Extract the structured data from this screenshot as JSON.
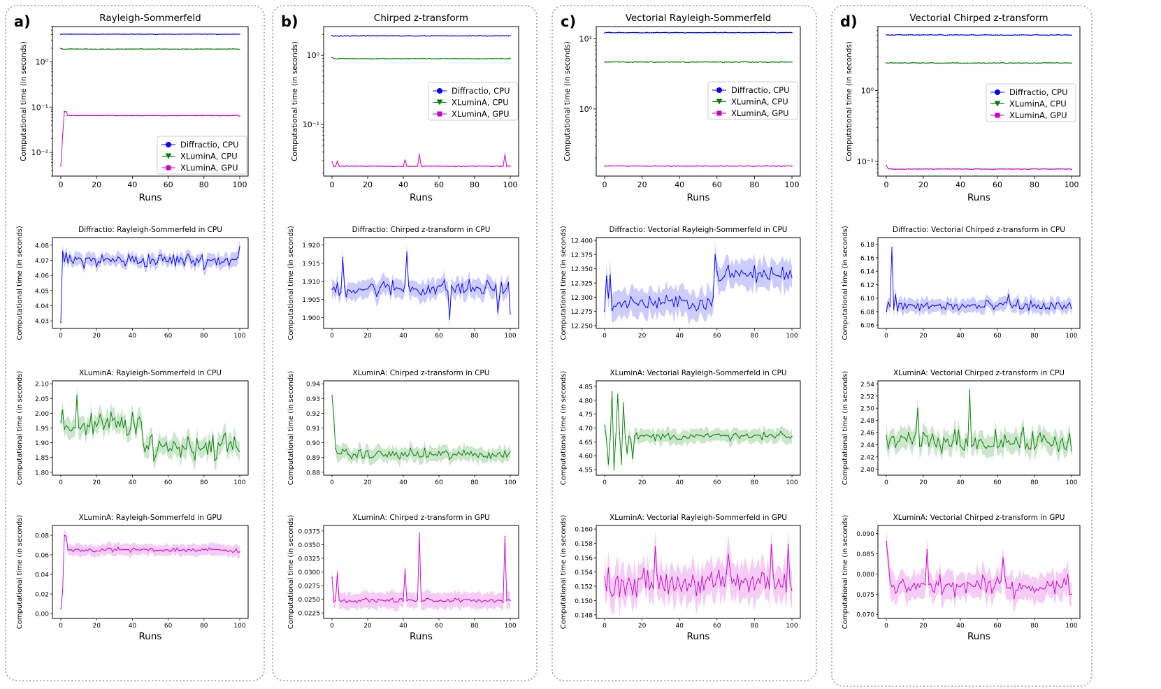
{
  "figure": {
    "panels": [
      {
        "letter": "a)",
        "title": "Rayleigh-Sommerfeld",
        "legend": [
          "Diffractio, CPU",
          "XLuminA, CPU",
          "XLuminA, GPU"
        ],
        "xlabel": "Runs",
        "ylabel": "Computational time (in seconds)",
        "yticks_log": [
          "10⁻²",
          "10⁻¹",
          "10⁰"
        ],
        "subplots": [
          {
            "title": "Diffractio: Rayleigh-Sommerfeld in CPU",
            "yticks": [
              "4.03",
              "4.04",
              "4.05",
              "4.06",
              "4.07",
              "4.08"
            ]
          },
          {
            "title": "XLuminA: Rayleigh-Sommerfeld in CPU",
            "yticks": [
              "1.80",
              "1.85",
              "1.90",
              "1.95",
              "2.00",
              "2.05",
              "2.10"
            ]
          },
          {
            "title": "XLuminA: Rayleigh-Sommerfeld in GPU",
            "yticks": [
              "0.00",
              "0.02",
              "0.04",
              "0.06",
              "0.08"
            ]
          }
        ]
      },
      {
        "letter": "b)",
        "title": "Chirped z-transform",
        "legend": [
          "Diffractio, CPU",
          "XLuminA, CPU",
          "XLuminA, GPU"
        ],
        "xlabel": "Runs",
        "ylabel": "Computational time (in seconds)",
        "yticks_log": [
          "10⁻¹",
          "10⁰"
        ],
        "subplots": [
          {
            "title": "Diffractio: Chirped z-transform in CPU",
            "yticks": [
              "1.900",
              "1.905",
              "1.910",
              "1.915",
              "1.920"
            ]
          },
          {
            "title": "XLuminA: Chirped z-transform in CPU",
            "yticks": [
              "0.88",
              "0.89",
              "0.90",
              "0.91",
              "0.92",
              "0.93",
              "0.94"
            ]
          },
          {
            "title": "XLuminA: Chirped z-transform in GPU",
            "yticks": [
              "0.0225",
              "0.0250",
              "0.0275",
              "0.0300",
              "0.0325",
              "0.0350",
              "0.0375"
            ]
          }
        ]
      },
      {
        "letter": "c)",
        "title": "Vectorial Rayleigh-Sommerfeld",
        "legend": [
          "Diffractio, CPU",
          "XLuminA, CPU",
          "XLuminA, GPU"
        ],
        "xlabel": "Runs",
        "ylabel": "Computational time (in seconds)",
        "yticks_log": [
          "10⁰",
          "10¹"
        ],
        "subplots": [
          {
            "title": "Diffractio: Vectorial Rayleigh-Sommerfeld in CPU",
            "yticks": [
              "12.250",
              "12.275",
              "12.300",
              "12.325",
              "12.350",
              "12.375",
              "12.400"
            ]
          },
          {
            "title": "XLuminA: Vectorial Rayleigh-Sommerfeld in CPU",
            "yticks": [
              "4.55",
              "4.60",
              "4.65",
              "4.70",
              "4.75",
              "4.80",
              "4.85"
            ]
          },
          {
            "title": "XLuminA: Vectorial Rayleigh-Sommerfeld in GPU",
            "yticks": [
              "0.148",
              "0.150",
              "0.152",
              "0.154",
              "0.156",
              "0.158",
              "0.160"
            ]
          }
        ]
      },
      {
        "letter": "d)",
        "title": "Vectorial Chirped z-transform",
        "legend": [
          "Diffractio, CPU",
          "XLuminA, CPU",
          "XLuminA, GPU"
        ],
        "xlabel": "Runs",
        "ylabel": "Computational time (in seconds)",
        "yticks_log": [
          "10⁻¹",
          "10⁰"
        ],
        "subplots": [
          {
            "title": "Diffractio: Vectorial Chirped z-transform in CPU",
            "yticks": [
              "6.06",
              "6.08",
              "6.10",
              "6.12",
              "6.14",
              "6.16",
              "6.18"
            ]
          },
          {
            "title": "XLuminA: Vectorial Chirped z-transform in CPU",
            "yticks": [
              "2.40",
              "2.42",
              "2.44",
              "2.46",
              "2.48",
              "2.50",
              "2.52",
              "2.54"
            ]
          },
          {
            "title": "XLuminA: Vectorial Chirped z-transform in GPU",
            "yticks": [
              "0.070",
              "0.075",
              "0.080",
              "0.085",
              "0.090"
            ]
          }
        ]
      }
    ],
    "colors": {
      "diffractio_cpu": "#0000ff",
      "xlumina_cpu": "#008000",
      "xlumina_gpu": "#cc00cc",
      "panel_border": "#999999"
    }
  },
  "chart_data": [
    {
      "type": "line",
      "panel": "a",
      "title": "Rayleigh-Sommerfeld",
      "xlabel": "Runs",
      "ylabel": "Computational time (in seconds)",
      "yscale": "log",
      "xlim": [
        0,
        100
      ],
      "ylim": [
        0.003,
        6
      ],
      "xticks": [
        0,
        20,
        40,
        60,
        80,
        100
      ],
      "legend": "center-right",
      "series": [
        {
          "name": "Diffractio, CPU",
          "marker": "circle",
          "key": [
            [
              0,
              4.03
            ],
            [
              1,
              4.076
            ],
            [
              100,
              4.079
            ]
          ],
          "level": 4.07
        },
        {
          "name": "XLuminA, CPU",
          "marker": "triangle-down",
          "key": [
            [
              0,
              1.97
            ],
            [
              100,
              1.87
            ]
          ],
          "level": 1.91
        },
        {
          "name": "XLuminA, GPU",
          "marker": "square",
          "key": [
            [
              0,
              0.005
            ],
            [
              1,
              0.023
            ],
            [
              2,
              0.08
            ],
            [
              3,
              0.079
            ],
            [
              4,
              0.065
            ],
            [
              100,
              0.063
            ]
          ],
          "level": 0.065
        }
      ]
    },
    {
      "type": "line",
      "panel": "a",
      "title": "Diffractio: Rayleigh-Sommerfeld in CPU",
      "xlim": [
        0,
        100
      ],
      "ylim": [
        4.025,
        4.085
      ],
      "errorband": true,
      "series": [
        {
          "name": "Diffractio, CPU",
          "key": [
            [
              0,
              4.029
            ],
            [
              1,
              4.076
            ],
            [
              100,
              4.079
            ]
          ],
          "level": 4.07,
          "noise": 0.004,
          "band": 0.005
        }
      ]
    },
    {
      "type": "line",
      "panel": "a",
      "title": "XLuminA: Rayleigh-Sommerfeld in CPU",
      "xlim": [
        0,
        100
      ],
      "ylim": [
        1.79,
        2.11
      ],
      "errorband": true,
      "series": [
        {
          "name": "XLuminA, CPU",
          "key": [
            [
              0,
              1.97
            ],
            [
              1,
              2.01
            ],
            [
              9,
              2.06
            ],
            [
              45,
              1.97
            ],
            [
              47,
              1.87
            ],
            [
              100,
              1.87
            ]
          ],
          "level_segments": [
            [
              0,
              45,
              1.96
            ],
            [
              46,
              100,
              1.89
            ]
          ],
          "noise": 0.04,
          "band": 0.04
        }
      ]
    },
    {
      "type": "line",
      "panel": "a",
      "title": "XLuminA: Rayleigh-Sommerfeld in GPU",
      "xlim": [
        0,
        100
      ],
      "ylim": [
        -0.005,
        0.09
      ],
      "errorband": true,
      "series": [
        {
          "name": "XLuminA, GPU",
          "key": [
            [
              0,
              0.005
            ],
            [
              1,
              0.023
            ],
            [
              2,
              0.08
            ],
            [
              3,
              0.079
            ],
            [
              4,
              0.065
            ],
            [
              100,
              0.063
            ]
          ],
          "level": 0.065,
          "noise": 0.002,
          "band": 0.007
        }
      ]
    },
    {
      "type": "line",
      "panel": "b",
      "title": "Chirped z-transform",
      "xlabel": "Runs",
      "ylabel": "Computational time (in seconds)",
      "yscale": "log",
      "xlim": [
        0,
        100
      ],
      "ylim": [
        0.018,
        2.6
      ],
      "xticks": [
        0,
        20,
        40,
        60,
        80,
        100
      ],
      "legend": "center-right",
      "series": [
        {
          "name": "Diffractio, CPU",
          "marker": "circle",
          "level": 1.908
        },
        {
          "name": "XLuminA, CPU",
          "marker": "triangle-down",
          "key": [
            [
              0,
              0.93
            ],
            [
              1,
              0.9
            ]
          ],
          "level": 0.892
        },
        {
          "name": "XLuminA, GPU",
          "marker": "square",
          "key": [
            [
              0,
              0.029
            ],
            [
              3,
              0.0295
            ],
            [
              6,
              0.025
            ],
            [
              41,
              0.0305
            ],
            [
              49,
              0.037
            ],
            [
              97,
              0.0365
            ],
            [
              100,
              0.025
            ]
          ],
          "level": 0.025
        }
      ]
    },
    {
      "type": "line",
      "panel": "b",
      "title": "Diffractio: Chirped z-transform in CPU",
      "xlim": [
        0,
        100
      ],
      "ylim": [
        1.897,
        1.922
      ],
      "errorband": true,
      "series": [
        {
          "name": "Diffractio, CPU",
          "key": [
            [
              6,
              1.9165
            ],
            [
              42,
              1.918
            ],
            [
              66,
              1.8995
            ],
            [
              93,
              1.9015
            ],
            [
              100,
              1.901
            ]
          ],
          "level": 1.908,
          "noise": 0.002,
          "band": 0.003
        }
      ]
    },
    {
      "type": "line",
      "panel": "b",
      "title": "XLuminA: Chirped z-transform in CPU",
      "xlim": [
        0,
        100
      ],
      "ylim": [
        0.878,
        0.942
      ],
      "errorband": true,
      "series": [
        {
          "name": "XLuminA, CPU",
          "key": [
            [
              0,
              0.932
            ],
            [
              1,
              0.917
            ],
            [
              2,
              0.896
            ],
            [
              100,
              0.894
            ]
          ],
          "level": 0.892,
          "noise": 0.003,
          "band": 0.006
        }
      ]
    },
    {
      "type": "line",
      "panel": "b",
      "title": "XLuminA: Chirped z-transform in GPU",
      "xlim": [
        0,
        100
      ],
      "ylim": [
        0.0215,
        0.0385
      ],
      "errorband": true,
      "series": [
        {
          "name": "XLuminA, GPU",
          "key": [
            [
              0,
              0.029
            ],
            [
              3,
              0.0298
            ],
            [
              6,
              0.0248
            ],
            [
              41,
              0.0305
            ],
            [
              49,
              0.037
            ],
            [
              97,
              0.0365
            ],
            [
              100,
              0.0248
            ]
          ],
          "level": 0.0248,
          "noise": 0.0003,
          "band": 0.0018
        }
      ]
    },
    {
      "type": "line",
      "panel": "c",
      "title": "Vectorial Rayleigh-Sommerfeld",
      "xlabel": "Runs",
      "ylabel": "Computational time (in seconds)",
      "yscale": "log",
      "xlim": [
        0,
        100
      ],
      "ylim": [
        0.11,
        15
      ],
      "xticks": [
        0,
        20,
        40,
        60,
        80,
        100
      ],
      "legend": "top-right",
      "series": [
        {
          "name": "Diffractio, CPU",
          "marker": "circle",
          "level": 12.3
        },
        {
          "name": "XLuminA, CPU",
          "marker": "triangle-down",
          "level": 4.67
        },
        {
          "name": "XLuminA, GPU",
          "marker": "square",
          "level": 0.153
        }
      ]
    },
    {
      "type": "line",
      "panel": "c",
      "title": "Diffractio: Vectorial Rayleigh-Sommerfeld in CPU",
      "xlim": [
        0,
        100
      ],
      "ylim": [
        12.245,
        12.405
      ],
      "errorband": true,
      "series": [
        {
          "name": "Diffractio, CPU",
          "key": [
            [
              0,
              12.275
            ],
            [
              1,
              12.337
            ],
            [
              3,
              12.339
            ],
            [
              58,
              12.3
            ],
            [
              59,
              12.375
            ],
            [
              100,
              12.335
            ]
          ],
          "level_segments": [
            [
              0,
              58,
              12.29
            ],
            [
              59,
              100,
              12.34
            ]
          ],
          "noise": 0.012,
          "band": 0.03
        }
      ]
    },
    {
      "type": "line",
      "panel": "c",
      "title": "XLuminA: Vectorial Rayleigh-Sommerfeld in CPU",
      "xlim": [
        0,
        100
      ],
      "ylim": [
        4.53,
        4.87
      ],
      "errorband": true,
      "series": [
        {
          "name": "XLuminA, CPU",
          "key": [
            [
              0,
              4.71
            ],
            [
              1,
              4.66
            ],
            [
              2,
              4.57
            ],
            [
              4,
              4.83
            ],
            [
              5,
              4.55
            ],
            [
              7,
              4.82
            ],
            [
              9,
              4.57
            ],
            [
              10,
              4.79
            ],
            [
              12,
              4.61
            ],
            [
              15,
              4.59
            ],
            [
              100,
              4.67
            ]
          ],
          "level": 4.67,
          "noise": 0.012,
          "band": 0.03
        }
      ]
    },
    {
      "type": "line",
      "panel": "c",
      "title": "XLuminA: Vectorial Rayleigh-Sommerfeld in GPU",
      "xlim": [
        0,
        100
      ],
      "ylim": [
        0.1475,
        0.1605
      ],
      "errorband": true,
      "series": [
        {
          "name": "XLuminA, GPU",
          "key": [
            [
              27,
              0.1575
            ],
            [
              66,
              0.1565
            ],
            [
              89,
              0.1578
            ],
            [
              98,
              0.1578
            ]
          ],
          "level": 0.1525,
          "noise": 0.0015,
          "band": 0.003
        }
      ]
    },
    {
      "type": "line",
      "panel": "d",
      "title": "Vectorial Chirped z-transform",
      "xlabel": "Runs",
      "ylabel": "Computational time (in seconds)",
      "yscale": "log",
      "xlim": [
        0,
        100
      ],
      "ylim": [
        0.062,
        8
      ],
      "xticks": [
        0,
        20,
        40,
        60,
        80,
        100
      ],
      "legend": "center-right",
      "series": [
        {
          "name": "Diffractio, CPU",
          "marker": "circle",
          "level": 6.09
        },
        {
          "name": "XLuminA, CPU",
          "marker": "triangle-down",
          "level": 2.45
        },
        {
          "name": "XLuminA, GPU",
          "marker": "square",
          "key": [
            [
              0,
              0.088
            ],
            [
              100,
              0.077
            ]
          ],
          "level": 0.078
        }
      ]
    },
    {
      "type": "line",
      "panel": "d",
      "title": "Diffractio: Vectorial Chirped z-transform in CPU",
      "xlim": [
        0,
        100
      ],
      "ylim": [
        6.055,
        6.19
      ],
      "errorband": true,
      "series": [
        {
          "name": "Diffractio, CPU",
          "key": [
            [
              0,
              6.08
            ],
            [
              3,
              6.175
            ],
            [
              5,
              6.105
            ],
            [
              66,
              6.105
            ],
            [
              100,
              6.085
            ]
          ],
          "level": 6.088,
          "noise": 0.007,
          "band": 0.012
        }
      ]
    },
    {
      "type": "line",
      "panel": "d",
      "title": "XLuminA: Vectorial Chirped z-transform in CPU",
      "xlim": [
        0,
        100
      ],
      "ylim": [
        2.39,
        2.545
      ],
      "errorband": true,
      "series": [
        {
          "name": "XLuminA, CPU",
          "key": [
            [
              0,
              2.455
            ],
            [
              17,
              2.5
            ],
            [
              45,
              2.53
            ],
            [
              100,
              2.43
            ]
          ],
          "level": 2.445,
          "noise": 0.015,
          "band": 0.02
        }
      ]
    },
    {
      "type": "line",
      "panel": "d",
      "title": "XLuminA: Vectorial Chirped z-transform in GPU",
      "xlim": [
        0,
        100
      ],
      "ylim": [
        0.069,
        0.092
      ],
      "errorband": true,
      "series": [
        {
          "name": "XLuminA, GPU",
          "key": [
            [
              0,
              0.088
            ],
            [
              1,
              0.0835
            ],
            [
              22,
              0.086
            ],
            [
              63,
              0.084
            ],
            [
              100,
              0.075
            ]
          ],
          "level": 0.077,
          "noise": 0.002,
          "band": 0.004
        }
      ]
    }
  ]
}
